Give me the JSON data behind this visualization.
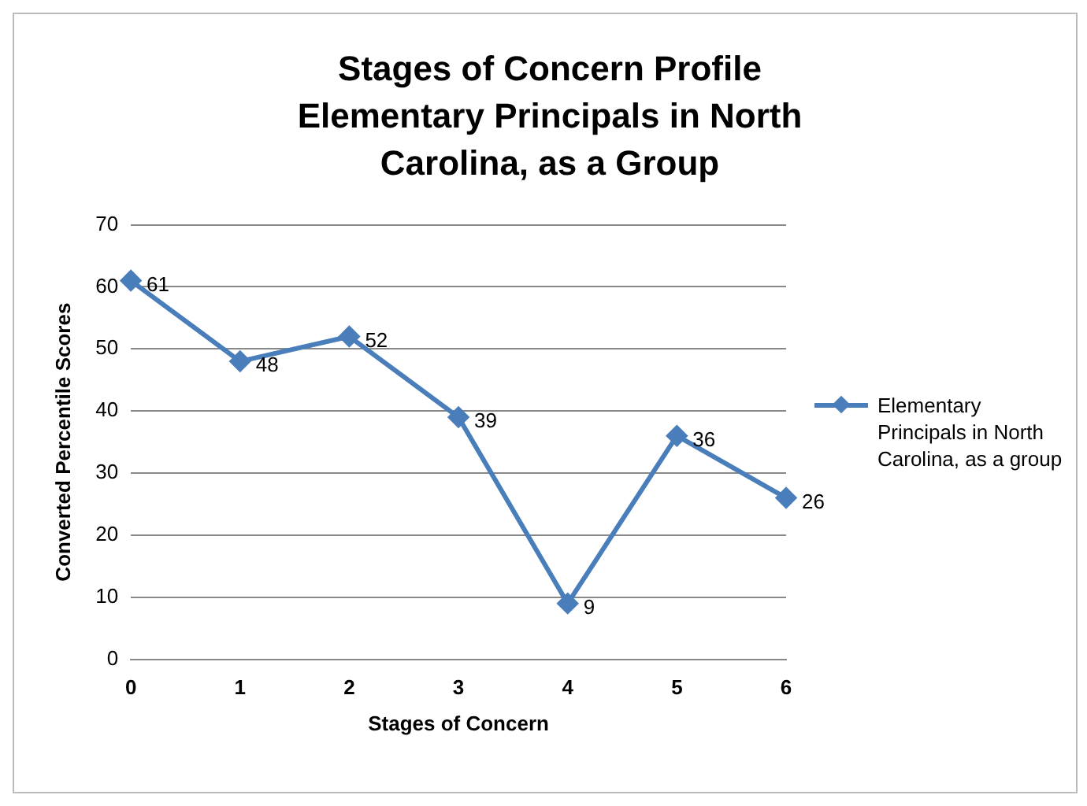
{
  "chart_data": {
    "type": "line",
    "title": "Stages of Concern Profile Elementary Principals in North Carolina, as a Group",
    "xlabel": "Stages of Concern",
    "ylabel": "Converted Percentile Scores",
    "categories": [
      "0",
      "1",
      "2",
      "3",
      "4",
      "5",
      "6"
    ],
    "series": [
      {
        "name": "Elementary Principals in North Carolina, as a group",
        "color": "#4a7ebb",
        "values": [
          61,
          48,
          52,
          39,
          9,
          36,
          26
        ]
      }
    ],
    "ylim": [
      0,
      70
    ],
    "yticks": [
      0,
      10,
      20,
      30,
      40,
      50,
      60,
      70
    ],
    "grid": "y",
    "legend": "right",
    "marker": "diamond",
    "line_style": "solid",
    "data_labels": true
  }
}
